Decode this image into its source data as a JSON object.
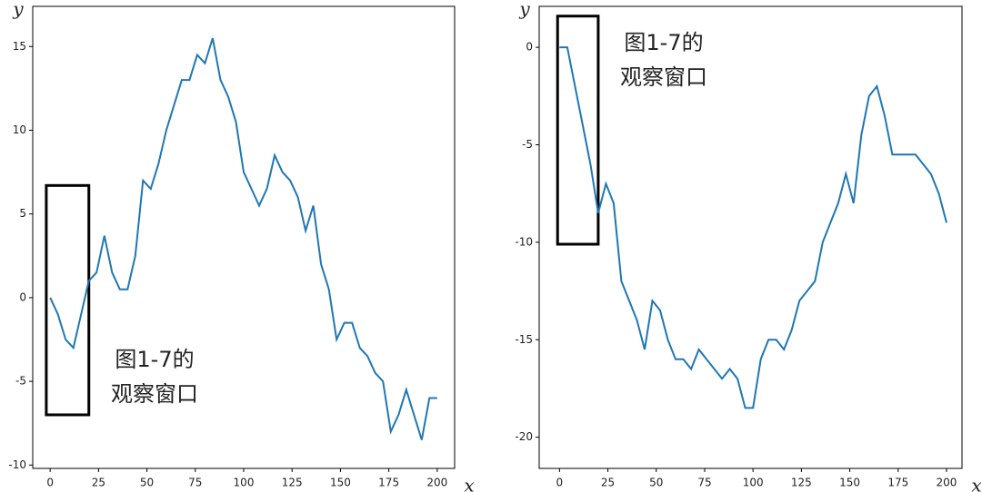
{
  "chart_data": [
    {
      "type": "line",
      "xlabel": "x",
      "ylabel": "y",
      "x": [
        0,
        4,
        8,
        12,
        16,
        20,
        24,
        28,
        32,
        36,
        40,
        44,
        48,
        52,
        56,
        60,
        64,
        68,
        72,
        76,
        80,
        84,
        88,
        92,
        96,
        100,
        104,
        108,
        112,
        116,
        120,
        124,
        128,
        132,
        136,
        140,
        144,
        148,
        152,
        156,
        160,
        164,
        168,
        172,
        176,
        180,
        184,
        188,
        192,
        196,
        200
      ],
      "series": [
        {
          "color": "#1f77b4",
          "values": [
            0,
            -1,
            -2.5,
            -3,
            -1,
            1,
            1.5,
            3.7,
            1.5,
            0.5,
            0.5,
            2.5,
            7,
            6.5,
            8,
            10,
            11.5,
            13,
            13,
            14.5,
            14,
            15.5,
            13,
            12,
            10.5,
            7.5,
            6.5,
            5.5,
            6.5,
            8.5,
            7.5,
            7,
            6,
            4,
            5.5,
            2,
            0.5,
            -2.5,
            -1.5,
            -1.5,
            -3,
            -3.5,
            -4.5,
            -5,
            -8,
            -7,
            -5.5,
            -7,
            -8.5,
            -6,
            -6
          ]
        }
      ],
      "xlim": [
        -9,
        209
      ],
      "ylim": [
        -10.2,
        17.4
      ],
      "xticks": [
        0,
        25,
        50,
        75,
        100,
        125,
        150,
        175,
        200
      ],
      "yticks": [
        -10,
        -5,
        0,
        5,
        10,
        15
      ],
      "window": {
        "x": [
          -2,
          20
        ],
        "y": [
          -7,
          6.7
        ]
      },
      "annotation": [
        "图1-7的",
        "观察窗口"
      ]
    },
    {
      "type": "line",
      "xlabel": "x",
      "ylabel": "y",
      "x": [
        0,
        4,
        8,
        12,
        16,
        20,
        24,
        28,
        32,
        36,
        40,
        44,
        48,
        52,
        56,
        60,
        64,
        68,
        72,
        76,
        80,
        84,
        88,
        92,
        96,
        100,
        104,
        108,
        112,
        116,
        120,
        124,
        128,
        132,
        136,
        140,
        144,
        148,
        152,
        156,
        160,
        164,
        168,
        172,
        176,
        180,
        184,
        188,
        192,
        196,
        200
      ],
      "series": [
        {
          "color": "#1f77b4",
          "values": [
            0,
            0,
            -2,
            -4,
            -6,
            -8.5,
            -7,
            -8,
            -12,
            -13,
            -14,
            -15.5,
            -13,
            -13.5,
            -15,
            -16,
            -16,
            -16.5,
            -15.5,
            -16,
            -16.5,
            -17,
            -16.5,
            -17,
            -18.5,
            -18.5,
            -16,
            -15,
            -15,
            -15.5,
            -14.5,
            -13,
            -12.5,
            -12,
            -10,
            -9,
            -8,
            -6.5,
            -8,
            -4.5,
            -2.5,
            -2,
            -3.5,
            -5.5,
            -5.5,
            -5.5,
            -5.5,
            -6,
            -6.5,
            -7.5,
            -9
          ]
        }
      ],
      "xlim": [
        -10.5,
        208
      ],
      "ylim": [
        -21.6,
        2.1
      ],
      "xticks": [
        0,
        25,
        50,
        75,
        100,
        125,
        150,
        175,
        200
      ],
      "yticks": [
        -20,
        -15,
        -10,
        -5,
        0
      ],
      "window": {
        "x": [
          -1,
          20
        ],
        "y": [
          -10.1,
          1.6
        ]
      },
      "annotation": [
        "图1-7的",
        "观察窗口"
      ]
    }
  ]
}
